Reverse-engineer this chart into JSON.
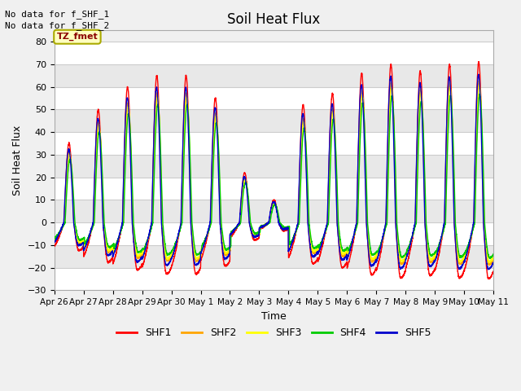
{
  "title": "Soil Heat Flux",
  "ylabel": "Soil Heat Flux",
  "xlabel": "Time",
  "annotations": [
    "No data for f_SHF_1",
    "No data for f_SHF_2"
  ],
  "legend_label": "TZ_fmet",
  "series_labels": [
    "SHF1",
    "SHF2",
    "SHF3",
    "SHF4",
    "SHF5"
  ],
  "series_colors_hex": [
    "#ff0000",
    "#ffa500",
    "#ffff00",
    "#00cc00",
    "#0000cc"
  ],
  "ylim": [
    -30,
    85
  ],
  "yticks": [
    -30,
    -20,
    -10,
    0,
    10,
    20,
    30,
    40,
    50,
    60,
    70,
    80
  ],
  "tick_labels": [
    "Apr 26",
    "Apr 27",
    "Apr 28",
    "Apr 29",
    "Apr 30",
    "May 1",
    "May 2",
    "May 3",
    "May 4",
    "May 5",
    "May 6",
    "May 7",
    "May 8",
    "May 9",
    "May 10",
    "May 11"
  ],
  "n_days": 15,
  "day_peaks_shf1": [
    35,
    50,
    60,
    65,
    65,
    55,
    22,
    10,
    52,
    57,
    66,
    70,
    67,
    70,
    71
  ],
  "night_min": -14,
  "rise_hour": 8,
  "peak_hour": 12,
  "fall_hour": 16,
  "night_hour": 20
}
